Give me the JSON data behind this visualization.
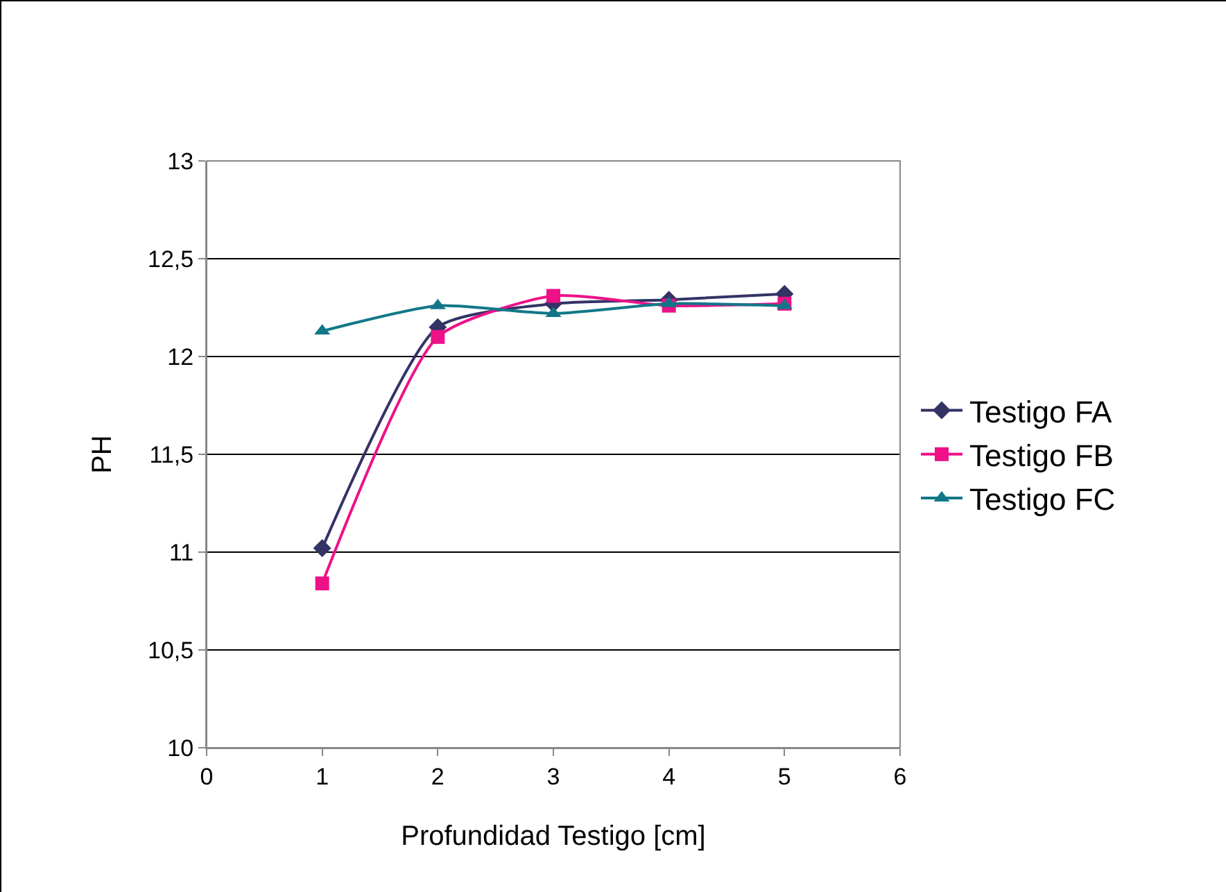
{
  "chart_data": {
    "type": "line",
    "xlabel": "Profundidad Testigo [cm]",
    "ylabel": "PH",
    "x": [
      1,
      2,
      3,
      4,
      5
    ],
    "series": [
      {
        "name": "Testigo FA",
        "color": "#333366",
        "marker": "diamond",
        "values": [
          11.02,
          12.15,
          12.27,
          12.29,
          12.32
        ]
      },
      {
        "name": "Testigo FB",
        "color": "#ee1188",
        "marker": "square",
        "values": [
          10.84,
          12.1,
          12.31,
          12.26,
          12.27
        ]
      },
      {
        "name": "Testigo FC",
        "color": "#117788",
        "marker": "triangle",
        "values": [
          12.13,
          12.26,
          12.22,
          12.27,
          12.26
        ]
      }
    ],
    "xlim": [
      0,
      6
    ],
    "xticks": [
      0,
      1,
      2,
      3,
      4,
      5,
      6
    ],
    "ylim": [
      10,
      13
    ],
    "yticks": [
      {
        "value": 10,
        "label": "10"
      },
      {
        "value": 10.5,
        "label": "10,5"
      },
      {
        "value": 11,
        "label": "11"
      },
      {
        "value": 11.5,
        "label": "11,5"
      },
      {
        "value": 12,
        "label": "12"
      },
      {
        "value": 12.5,
        "label": "12,5"
      },
      {
        "value": 13,
        "label": "13"
      }
    ],
    "grid": "y",
    "legend": "right",
    "line_style": "solid"
  }
}
